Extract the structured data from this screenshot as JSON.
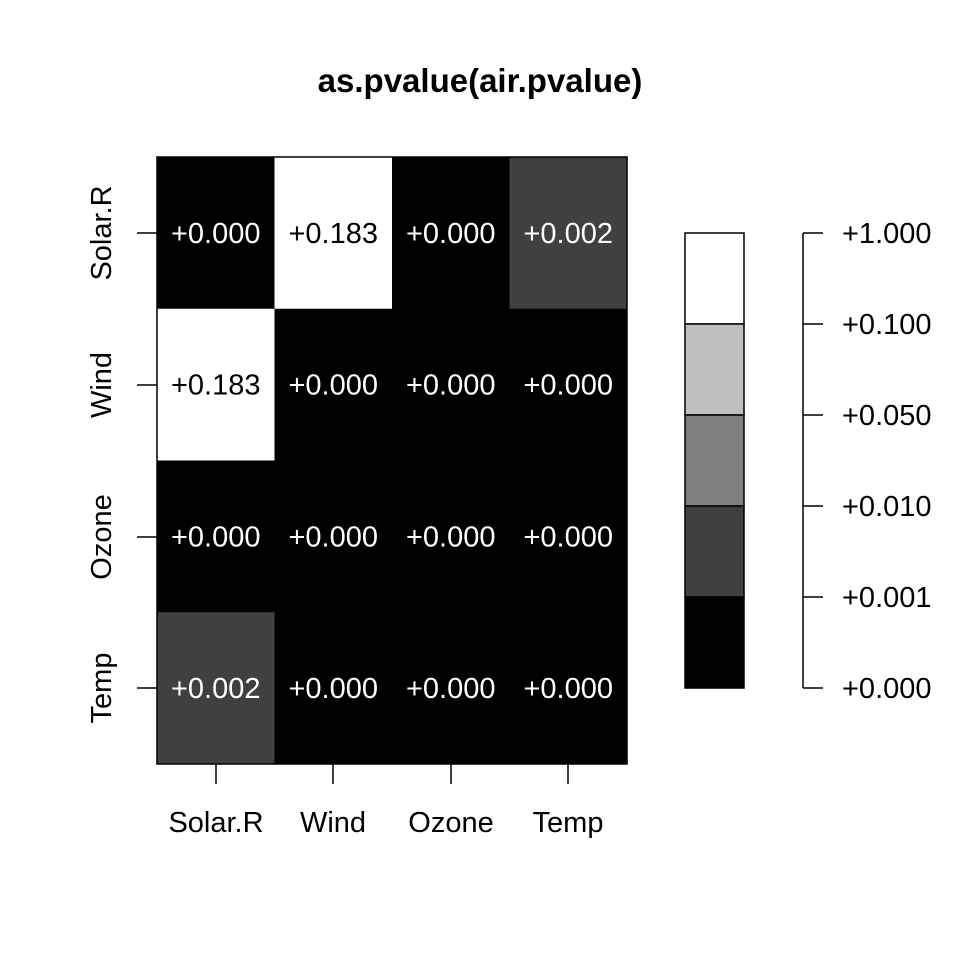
{
  "chart_data": {
    "type": "heatmap",
    "title": "as.pvalue(air.pvalue)",
    "xlabel": "",
    "ylabel": "",
    "rows": [
      "Solar.R",
      "Wind",
      "Ozone",
      "Temp"
    ],
    "columns": [
      "Solar.R",
      "Wind",
      "Ozone",
      "Temp"
    ],
    "values": [
      [
        0.0,
        0.183,
        0.0,
        0.002
      ],
      [
        0.183,
        0.0,
        0.0,
        0.0
      ],
      [
        0.0,
        0.0,
        0.0,
        0.0
      ],
      [
        0.002,
        0.0,
        0.0,
        0.0
      ]
    ],
    "value_labels": [
      [
        "+0.000",
        "+0.183",
        "+0.000",
        "+0.002"
      ],
      [
        "+0.183",
        "+0.000",
        "+0.000",
        "+0.000"
      ],
      [
        "+0.000",
        "+0.000",
        "+0.000",
        "+0.000"
      ],
      [
        "+0.002",
        "+0.000",
        "+0.000",
        "+0.000"
      ]
    ],
    "color_breaks": [
      0,
      0.001,
      0.01,
      0.05,
      0.1,
      1
    ],
    "color_scale": [
      "#000000",
      "#404040",
      "#7f7f7f",
      "#bfbfbf",
      "#ffffff"
    ],
    "legend_tick_labels": [
      "+1.000",
      "+0.100",
      "+0.050",
      "+0.010",
      "+0.001",
      "+0.000"
    ],
    "legend_position": "right",
    "grid": false
  }
}
